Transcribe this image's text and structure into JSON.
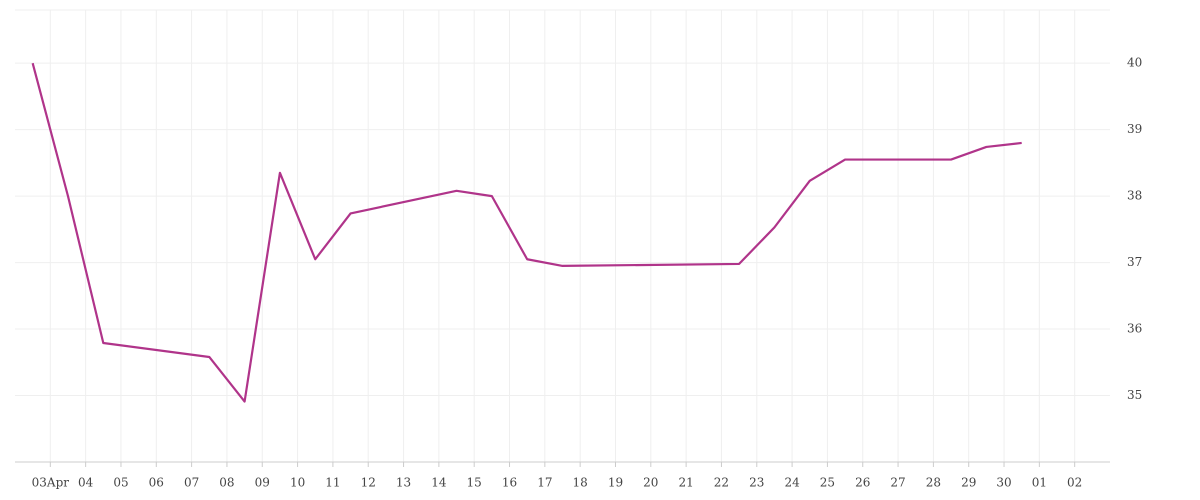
{
  "chart_data": {
    "type": "line",
    "x": [
      2.5,
      3.5,
      4.5,
      7.5,
      8.5,
      9.5,
      10.5,
      11.5,
      14.5,
      15.5,
      16.5,
      17.5,
      22.5,
      23.5,
      24.5,
      25.5,
      28.5,
      29.5,
      30.5
    ],
    "series": [
      {
        "name": null,
        "color": "#b0348a",
        "values": [
          40.0,
          38.0,
          35.79,
          35.58,
          34.91,
          38.35,
          37.05,
          37.74,
          38.08,
          38.0,
          37.05,
          36.95,
          36.98,
          37.53,
          38.23,
          38.55,
          38.55,
          38.74,
          38.8
        ]
      }
    ],
    "xlim": [
      2,
      33
    ],
    "xticks": [
      {
        "value": 3,
        "label": "03Apr"
      },
      {
        "value": 4,
        "label": "04"
      },
      {
        "value": 5,
        "label": "05"
      },
      {
        "value": 6,
        "label": "06"
      },
      {
        "value": 7,
        "label": "07"
      },
      {
        "value": 8,
        "label": "08"
      },
      {
        "value": 9,
        "label": "09"
      },
      10,
      11,
      12,
      13,
      14,
      15,
      16,
      17,
      18,
      19,
      20,
      21,
      22,
      23,
      24,
      25,
      26,
      27,
      28,
      29,
      30,
      {
        "value": 31,
        "label": "01"
      },
      {
        "value": 32,
        "label": "02"
      }
    ],
    "ylim": [
      34,
      40.8
    ],
    "yticks": [
      35,
      36,
      37,
      38,
      39,
      40
    ],
    "grid": true
  }
}
